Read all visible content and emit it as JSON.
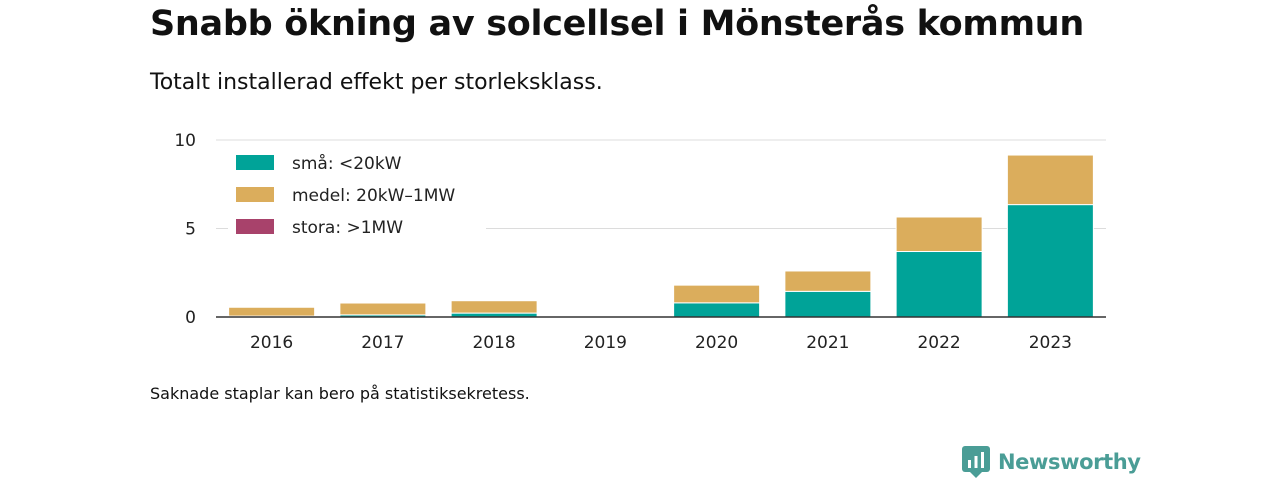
{
  "title": "Snabb ökning av solcellsel i Mönsterås kommun",
  "subtitle": "Totalt installerad effekt per storleksklass.",
  "note": "Saknade staplar kan bero på statistiksekretess.",
  "brand": {
    "name": "Newsworthy",
    "icon": "newsworthy-logo-icon",
    "color": "#4a9d96"
  },
  "chart_data": {
    "type": "bar",
    "stacked": true,
    "categories": [
      "2016",
      "2017",
      "2018",
      "2019",
      "2020",
      "2021",
      "2022",
      "2023"
    ],
    "series": [
      {
        "name": "små: <20kW",
        "color": "#00a398",
        "values": [
          0.05,
          0.12,
          0.22,
          0,
          0.8,
          1.45,
          3.7,
          6.35
        ]
      },
      {
        "name": "medel: 20kW–1MW",
        "color": "#dbad5c",
        "values": [
          0.5,
          0.67,
          0.7,
          0,
          1.0,
          1.15,
          1.95,
          2.8
        ]
      },
      {
        "name": "stora: >1MW",
        "color": "#a8426b",
        "values": [
          0,
          0,
          0,
          0,
          0,
          0,
          0,
          0
        ]
      }
    ],
    "yticks": [
      0,
      5,
      10
    ],
    "ylim": [
      0,
      10
    ],
    "grid": true,
    "legend_position": "top-left"
  }
}
